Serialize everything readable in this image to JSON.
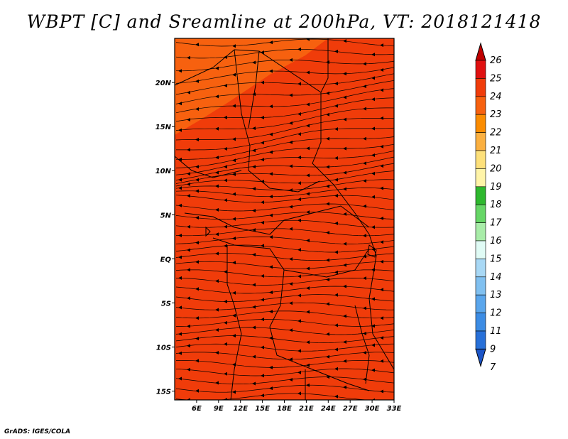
{
  "title": "WBPT [C] and Sreamline at 200hPa, VT: 2018121418",
  "footer": "GrADS: IGES/COLA",
  "map": {
    "lon_range": [
      3,
      33
    ],
    "lat_range": [
      -16,
      25
    ],
    "lon_labels": [
      "6E",
      "9E",
      "12E",
      "15E",
      "18E",
      "21E",
      "24E",
      "27E",
      "30E",
      "33E"
    ],
    "lon_values": [
      6,
      9,
      12,
      15,
      18,
      21,
      24,
      27,
      30,
      33
    ],
    "lat_labels": [
      "20N",
      "15N",
      "10N",
      "5N",
      "EQ",
      "5S",
      "10S",
      "15S"
    ],
    "lat_values": [
      20,
      15,
      10,
      5,
      0,
      -5,
      -10,
      -15
    ],
    "base_fill": "#f03c0a",
    "warm_band_fill": "#f7610f",
    "streamline_color": "#000000"
  },
  "colorbar": {
    "labels": [
      "26",
      "25",
      "24",
      "23",
      "22",
      "21",
      "20",
      "19",
      "18",
      "17",
      "16",
      "15",
      "14",
      "13",
      "12",
      "11",
      "9",
      "7"
    ],
    "colors": [
      "#c00000",
      "#e01010",
      "#f03c0a",
      "#f7610f",
      "#fb8c00",
      "#fbb040",
      "#fde07a",
      "#fff4a8",
      "#2eb82e",
      "#66d666",
      "#a8eca8",
      "#e0fbf5",
      "#a8d8f5",
      "#80c0f0",
      "#5aa6ec",
      "#3c8ce4",
      "#2870d8",
      "#1c55c8"
    ]
  }
}
